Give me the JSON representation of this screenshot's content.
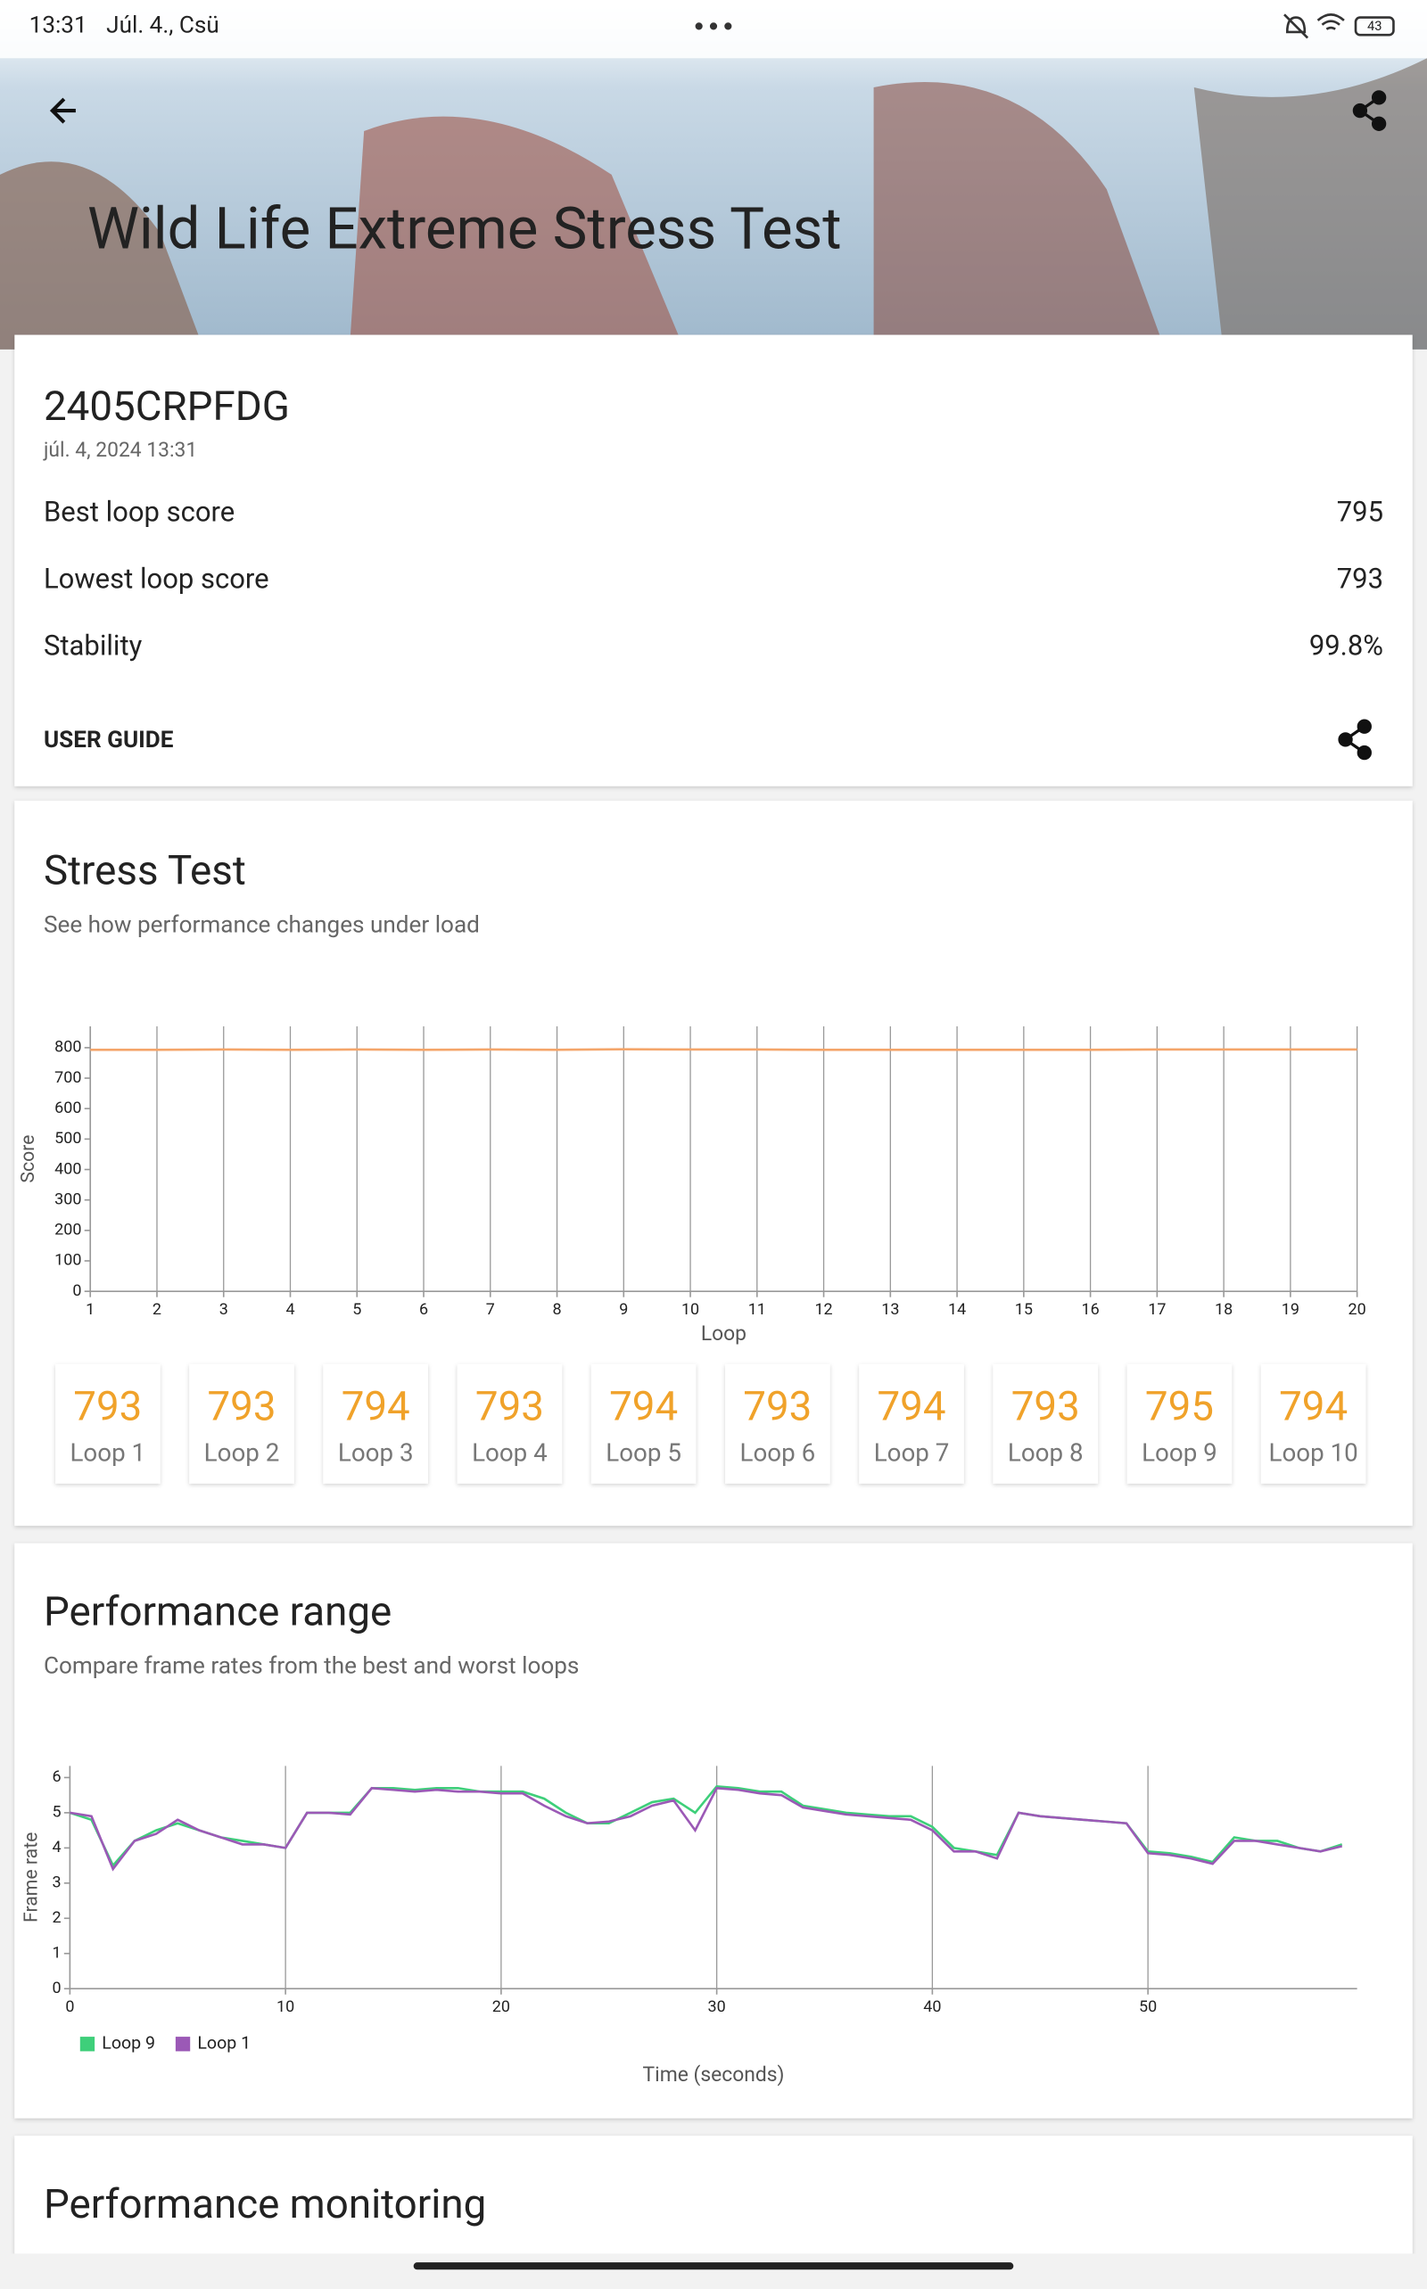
{
  "status_bar": {
    "time": "13:31",
    "date": "Júl. 4., Csü",
    "battery": "43"
  },
  "header": {
    "title": "Wild Life Extreme Stress Test"
  },
  "summary": {
    "device": "2405CRPFDG",
    "date": "júl. 4, 2024 13:31",
    "rows": [
      {
        "label": "Best loop score",
        "value": "795"
      },
      {
        "label": "Lowest loop score",
        "value": "793"
      },
      {
        "label": "Stability",
        "value": "99.8%"
      }
    ],
    "user_guide": "USER GUIDE"
  },
  "stress_test": {
    "title": "Stress Test",
    "subtitle": "See how performance changes under load",
    "chart_data": {
      "type": "line",
      "x_label": "Loop",
      "y_label": "Score",
      "x": [
        1,
        2,
        3,
        4,
        5,
        6,
        7,
        8,
        9,
        10,
        11,
        12,
        13,
        14,
        15,
        16,
        17,
        18,
        19,
        20
      ],
      "values": [
        793,
        793,
        794,
        793,
        794,
        793,
        794,
        793,
        795,
        794,
        794,
        793,
        793,
        793,
        793,
        793,
        794,
        794,
        794,
        794
      ],
      "color": "#f4a56a",
      "xlim": [
        1,
        20
      ],
      "ylim": [
        0,
        870
      ],
      "xticks": [
        1,
        2,
        3,
        4,
        5,
        6,
        7,
        8,
        9,
        10,
        11,
        12,
        13,
        14,
        15,
        16,
        17,
        18,
        19,
        20
      ],
      "yticks": [
        0,
        100,
        200,
        300,
        400,
        500,
        600,
        700,
        800
      ],
      "grid": true
    },
    "loop_labels": [
      "Loop 1",
      "Loop 2",
      "Loop 3",
      "Loop 4",
      "Loop 5",
      "Loop 6",
      "Loop 7",
      "Loop 8",
      "Loop 9",
      "Loop 10"
    ]
  },
  "performance_range": {
    "title": "Performance range",
    "subtitle": "Compare frame rates from the best and worst loops",
    "chart_data": {
      "type": "line",
      "x_label": "Time (seconds)",
      "y_label": "Frame rate",
      "x": [
        0,
        1,
        2,
        3,
        4,
        5,
        6,
        7,
        8,
        9,
        10,
        11,
        12,
        13,
        14,
        15,
        16,
        17,
        18,
        19,
        20,
        21,
        22,
        23,
        24,
        25,
        26,
        27,
        28,
        29,
        30,
        31,
        32,
        33,
        34,
        35,
        36,
        37,
        38,
        39,
        40,
        41,
        42,
        43,
        44,
        45,
        46,
        47,
        48,
        49,
        50,
        51,
        52,
        53,
        54,
        55,
        56,
        57,
        58,
        59
      ],
      "series": [
        {
          "name": "Loop 9",
          "color": "#3ecf7a",
          "values": [
            5.0,
            4.8,
            3.5,
            4.2,
            4.5,
            4.7,
            4.5,
            4.3,
            4.2,
            4.1,
            4.0,
            5.0,
            5.0,
            5.0,
            5.7,
            5.7,
            5.65,
            5.7,
            5.7,
            5.6,
            5.6,
            5.6,
            5.4,
            5.0,
            4.7,
            4.7,
            5.0,
            5.3,
            5.4,
            5.0,
            5.75,
            5.7,
            5.6,
            5.6,
            5.2,
            5.1,
            5.0,
            4.95,
            4.9,
            4.9,
            4.6,
            4.0,
            3.9,
            3.8,
            5.0,
            4.9,
            4.85,
            4.8,
            4.75,
            4.7,
            3.9,
            3.85,
            3.75,
            3.6,
            4.3,
            4.2,
            4.2,
            4.0,
            3.9,
            4.1
          ]
        },
        {
          "name": "Loop 1",
          "color": "#9b59b6",
          "values": [
            5.0,
            4.9,
            3.4,
            4.2,
            4.4,
            4.8,
            4.5,
            4.3,
            4.1,
            4.1,
            4.0,
            5.0,
            5.0,
            4.95,
            5.7,
            5.65,
            5.6,
            5.65,
            5.6,
            5.6,
            5.55,
            5.55,
            5.2,
            4.9,
            4.7,
            4.75,
            4.9,
            5.2,
            5.35,
            4.5,
            5.7,
            5.65,
            5.55,
            5.5,
            5.15,
            5.05,
            4.95,
            4.9,
            4.85,
            4.8,
            4.5,
            3.9,
            3.9,
            3.7,
            5.0,
            4.9,
            4.85,
            4.8,
            4.75,
            4.7,
            3.85,
            3.8,
            3.7,
            3.55,
            4.2,
            4.2,
            4.1,
            4.0,
            3.9,
            4.05
          ]
        }
      ],
      "xlim": [
        0,
        59.7
      ],
      "ylim": [
        0,
        6.33
      ],
      "xticks": [
        0,
        10,
        20,
        30,
        40,
        50
      ],
      "yticks": [
        0,
        1,
        2,
        3,
        4,
        5,
        6
      ],
      "grid": true,
      "legend": "bottom-left"
    }
  },
  "performance_monitoring": {
    "title": "Performance monitoring"
  }
}
